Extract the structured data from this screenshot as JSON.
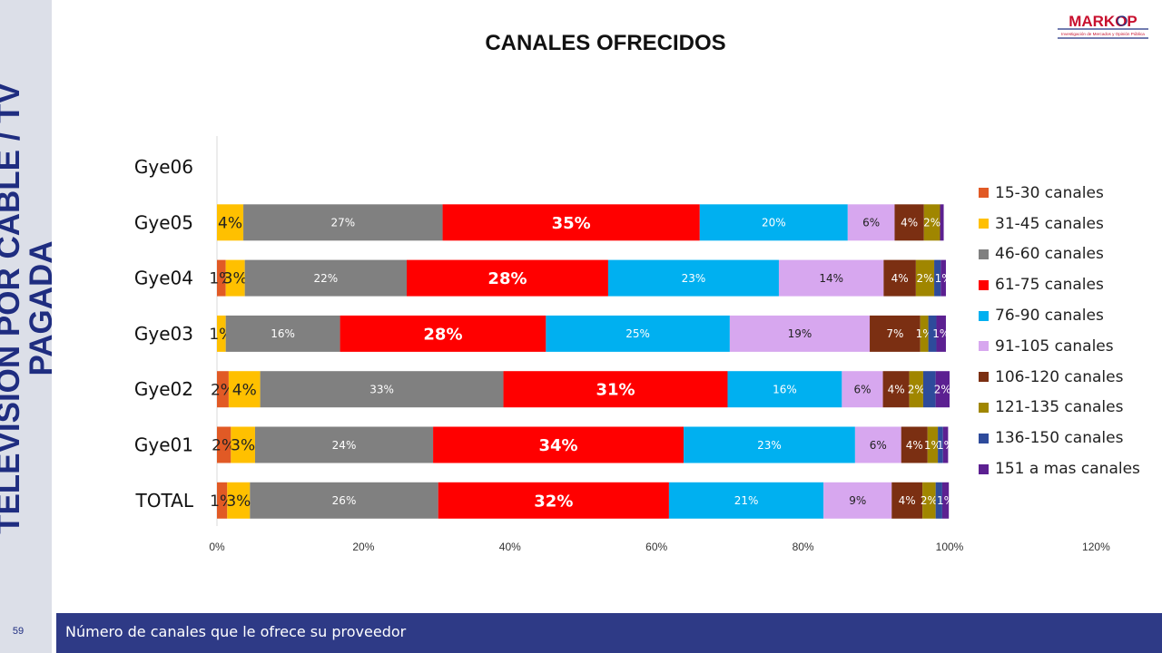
{
  "page": {
    "side_title_line1": "TELEVISIÓN POR CABLE / TV",
    "side_title_line2": "PAGADA",
    "page_number": "59",
    "footer_text": "Número de canales que le ofrece su proveedor",
    "logo_text": "MARKOP",
    "logo_subtext": "Investigación de Mercados y Opinión Pública"
  },
  "colors": {
    "side_band": "#dcdfe8",
    "footer": "#2e3a86",
    "logo_red": "#c8102e",
    "logo_blue": "#1f2d80"
  },
  "chart_data": {
    "type": "bar",
    "orientation": "horizontal",
    "stacked": true,
    "title": "CANALES OFRECIDOS",
    "categories": [
      "Gye06",
      "Gye05",
      "Gye04",
      "Gye03",
      "Gye02",
      "Gye01",
      "TOTAL"
    ],
    "x_ticks": [
      "0%",
      "20%",
      "40%",
      "60%",
      "80%",
      "100%",
      "120%"
    ],
    "xlim": [
      0,
      120
    ],
    "grid": false,
    "legend_position": "right",
    "series": [
      {
        "name": "15-30 canales",
        "color": "#e15a25",
        "values": [
          0,
          0,
          1.2,
          0,
          1.6,
          1.9,
          1.4
        ],
        "labels": [
          "",
          "",
          "1%",
          "",
          "2%",
          "2%",
          "1%"
        ]
      },
      {
        "name": "31-45 canales",
        "color": "#ffc000",
        "values": [
          0,
          3.6,
          2.6,
          1.2,
          4.3,
          3.3,
          3.1
        ],
        "labels": [
          "",
          "4%",
          "3%",
          "1%",
          "4%",
          "3%",
          "3%"
        ]
      },
      {
        "name": "46-60 canales",
        "color": "#808080",
        "values": [
          0,
          27.2,
          22.1,
          15.6,
          33.2,
          24.3,
          25.7
        ],
        "labels": [
          "",
          "27%",
          "22%",
          "16%",
          "33%",
          "24%",
          "26%"
        ]
      },
      {
        "name": "61-75 canales",
        "color": "#ff0000",
        "values": [
          0,
          35.1,
          27.5,
          28.1,
          30.6,
          34.2,
          31.5
        ],
        "labels": [
          "",
          "35%",
          "28%",
          "28%",
          "31%",
          "34%",
          "32%"
        ]
      },
      {
        "name": "76-90 canales",
        "color": "#00b0f0",
        "values": [
          0,
          20.2,
          23.3,
          25.1,
          15.6,
          23.4,
          21.1
        ],
        "labels": [
          "",
          "20%",
          "23%",
          "25%",
          "16%",
          "23%",
          "21%"
        ]
      },
      {
        "name": "91-105 canales",
        "color": "#d7a7ef",
        "values": [
          0,
          6.4,
          14.3,
          19.1,
          5.6,
          6.3,
          9.3
        ],
        "labels": [
          "",
          "6%",
          "14%",
          "19%",
          "6%",
          "6%",
          "9%"
        ]
      },
      {
        "name": "106-120 canales",
        "color": "#7b2f12",
        "values": [
          0,
          4.0,
          4.4,
          6.9,
          3.6,
          3.6,
          4.2
        ],
        "labels": [
          "",
          "4%",
          "4%",
          "7%",
          "4%",
          "4%",
          "4%"
        ]
      },
      {
        "name": "121-135 canales",
        "color": "#a08600",
        "values": [
          0,
          2.2,
          2.5,
          1.1,
          1.9,
          1.4,
          1.8
        ],
        "labels": [
          "",
          "2%",
          "2%",
          "1%",
          "2%",
          "1%",
          "2%"
        ]
      },
      {
        "name": "136-150 canales",
        "color": "#2e4b9b",
        "values": [
          0,
          0,
          0.9,
          1.1,
          1.7,
          0.7,
          0.9
        ],
        "labels": [
          "",
          "",
          "",
          "",
          "",
          "",
          ""
        ]
      },
      {
        "name": "151 a mas canales",
        "color": "#5c2091",
        "values": [
          0,
          0.5,
          0.7,
          1.3,
          1.9,
          0.7,
          0.9
        ],
        "labels": [
          "",
          "",
          "1%",
          "1%",
          "2%",
          "1%",
          "1%"
        ]
      }
    ]
  }
}
